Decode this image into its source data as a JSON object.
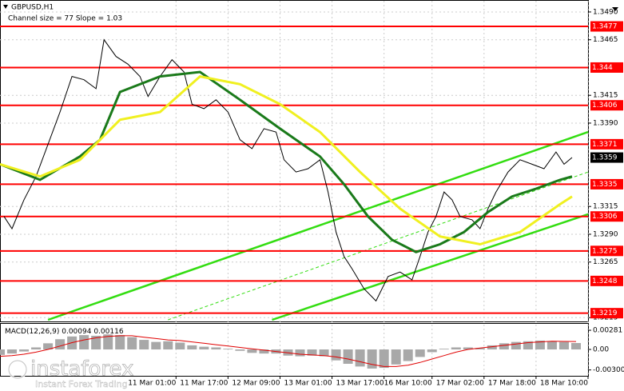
{
  "chart_data": [
    {
      "type": "line",
      "title": "GBPUSD,H1",
      "subtitle": "Channel size = 77 Slope = 1.03",
      "xlim": [
        0,
        147
      ],
      "ylim": [
        1.3213,
        1.3495
      ],
      "yticks": [
        {
          "value": 1.349,
          "label": "1.3490"
        },
        1.3465,
        1.3415,
        {
          "value": 1.339,
          "label": "1.3390"
        },
        1.3315,
        {
          "value": 1.329,
          "label": "1.3290"
        },
        1.3265,
        1.3215
      ],
      "xticks": [
        {
          "value": 44,
          "label": "11 Mar 01:00"
        },
        {
          "value": 57,
          "label": "11 Mar 17:00"
        },
        {
          "value": 70,
          "label": "12 Mar 09:00"
        },
        {
          "value": 83,
          "label": "13 Mar 01:00"
        },
        {
          "value": 96,
          "label": "13 Mar 17:00"
        },
        {
          "value": 108,
          "label": "16 Mar 10:00"
        },
        {
          "value": 121,
          "label": "17 Mar 02:00"
        },
        {
          "value": 134,
          "label": "17 Mar 18:00"
        },
        {
          "value": 147,
          "label": "18 Mar 10:00"
        }
      ],
      "grid": true,
      "series": [
        {
          "color": "#000000",
          "x": [
            1,
            3,
            6,
            9,
            12,
            15,
            18,
            21,
            24,
            26,
            29,
            32,
            35,
            37,
            40,
            43,
            46,
            48,
            51,
            54,
            57,
            60,
            63,
            66,
            69,
            71,
            74,
            77,
            80,
            82,
            84,
            86,
            88,
            91,
            94,
            97,
            100,
            103,
            105,
            107,
            109,
            111,
            113,
            115,
            118,
            120,
            122,
            124,
            127,
            130,
            133,
            136,
            139,
            141,
            143
          ],
          "values": [
            1.3306,
            1.3295,
            1.3321,
            1.3342,
            1.3371,
            1.34,
            1.3432,
            1.3429,
            1.3421,
            1.3465,
            1.345,
            1.3443,
            1.3432,
            1.3414,
            1.3432,
            1.3447,
            1.3436,
            1.3407,
            1.3403,
            1.3411,
            1.34,
            1.3375,
            1.3367,
            1.3385,
            1.3382,
            1.3357,
            1.3346,
            1.3349,
            1.3357,
            1.3328,
            1.3292,
            1.327,
            1.3259,
            1.3241,
            1.323,
            1.3252,
            1.3256,
            1.3249,
            1.327,
            1.3292,
            1.3306,
            1.3328,
            1.3321,
            1.3306,
            1.3303,
            1.3295,
            1.3313,
            1.3328,
            1.3346,
            1.3357,
            1.3353,
            1.3349,
            1.3364,
            1.3353,
            1.3359
          ]
        },
        {
          "color": "#1a7a1a",
          "x": [
            0,
            10,
            20,
            25,
            30,
            40,
            50,
            60,
            70,
            80,
            86,
            92,
            98,
            104,
            110,
            116,
            122,
            128,
            134,
            140,
            143
          ],
          "values": [
            1.3353,
            1.3339,
            1.336,
            1.3375,
            1.3418,
            1.3432,
            1.3436,
            1.3411,
            1.3385,
            1.336,
            1.3335,
            1.3306,
            1.3285,
            1.3274,
            1.3281,
            1.3292,
            1.331,
            1.3324,
            1.3331,
            1.3339,
            1.3342
          ]
        },
        {
          "color": "#f0f020",
          "x": [
            0,
            10,
            20,
            30,
            40,
            50,
            60,
            70,
            80,
            90,
            100,
            110,
            120,
            130,
            140,
            143
          ],
          "values": [
            1.3353,
            1.3342,
            1.3357,
            1.3393,
            1.34,
            1.3432,
            1.3425,
            1.3407,
            1.3382,
            1.3346,
            1.3313,
            1.3288,
            1.3281,
            1.3292,
            1.3317,
            1.3324
          ]
        }
      ],
      "trendlines": [
        {
          "color": "#33dd11",
          "style": "solid",
          "x": [
            12,
            147
          ],
          "values": [
            1.3213,
            1.3382
          ]
        },
        {
          "color": "#33dd11",
          "style": "solid",
          "x": [
            68,
            147
          ],
          "values": [
            1.3213,
            1.3308
          ]
        },
        {
          "color": "#33dd11",
          "style": "dashed",
          "x": [
            42,
            147
          ],
          "values": [
            1.3213,
            1.3346
          ]
        }
      ],
      "levels": [
        1.3477,
        1.344,
        1.3406,
        1.3371,
        1.3335,
        1.3306,
        1.3275,
        1.3248,
        1.3219
      ],
      "level_color": "#ff0000"
    },
    {
      "type": "macd",
      "label": "MACD(12,26,9)",
      "xlim": [
        0,
        147
      ],
      "ylim": [
        -0.00386,
        0.00375
      ],
      "yticks": [
        0.00281,
        {
          "value": 0,
          "label": "0.00"
        },
        {
          "value": -0.003,
          "label": "-0.00300"
        }
      ],
      "x": [
        0,
        3,
        6,
        9,
        12,
        15,
        18,
        21,
        24,
        27,
        30,
        33,
        36,
        39,
        42,
        45,
        48,
        51,
        54,
        57,
        60,
        63,
        66,
        69,
        72,
        75,
        78,
        81,
        84,
        87,
        90,
        93,
        96,
        99,
        102,
        105,
        108,
        111,
        114,
        117,
        120,
        123,
        126,
        129,
        132,
        135,
        138,
        141,
        144
      ],
      "histogram": {
        "color": "#a8a8a8",
        "values": [
          -0.0008,
          -0.0006,
          -0.0003,
          0.0003,
          0.0009,
          0.0015,
          0.0019,
          0.0021,
          0.002,
          0.0022,
          0.0021,
          0.0018,
          0.0014,
          0.0011,
          0.0012,
          0.001,
          0.0006,
          0.0004,
          0.0003,
          0.0001,
          -0.0002,
          -0.0005,
          -0.0006,
          -0.0006,
          -0.0009,
          -0.001,
          -0.0009,
          -0.001,
          -0.0016,
          -0.0021,
          -0.0025,
          -0.0028,
          -0.0027,
          -0.0022,
          -0.0017,
          -0.0011,
          -0.0004,
          0.0001,
          0.0003,
          0.0003,
          0.0002,
          0.0006,
          0.0009,
          0.0011,
          0.0012,
          0.0013,
          0.0012,
          0.0011,
          0.00094
        ]
      },
      "signal": {
        "color": "#e00000",
        "values": [
          -0.001,
          -0.0009,
          -0.0007,
          -0.0004,
          0.0,
          0.0005,
          0.001,
          0.0014,
          0.0017,
          0.0019,
          0.002,
          0.002,
          0.0018,
          0.0016,
          0.0014,
          0.0013,
          0.0011,
          0.0009,
          0.0007,
          0.0005,
          0.0003,
          0.0001,
          -0.0001,
          -0.0003,
          -0.0005,
          -0.0007,
          -0.0008,
          -0.0009,
          -0.0011,
          -0.0014,
          -0.0018,
          -0.0022,
          -0.0025,
          -0.0025,
          -0.0023,
          -0.0019,
          -0.0014,
          -0.0009,
          -0.0004,
          0.0,
          0.0002,
          0.0004,
          0.0006,
          0.0008,
          0.001,
          0.0011,
          0.0012,
          0.00118,
          0.00116
        ]
      }
    }
  ],
  "watermark": {
    "brand": "instaforex",
    "tagline": "Instant Forex Trading"
  }
}
